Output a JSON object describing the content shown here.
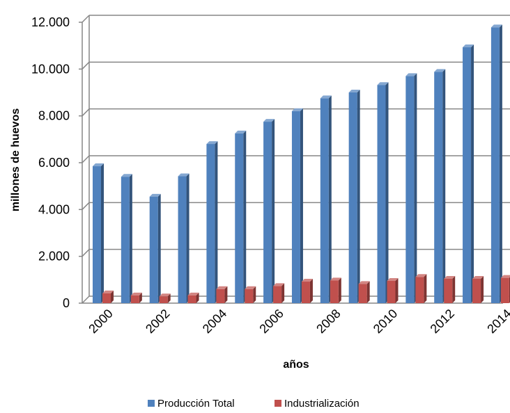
{
  "chart_data": {
    "type": "bar",
    "style": "3d-clustered-column",
    "x": [
      2000,
      2001,
      2002,
      2003,
      2004,
      2005,
      2006,
      2007,
      2008,
      2009,
      2010,
      2011,
      2012,
      2013,
      2014
    ],
    "x_tick_labels": [
      "2000",
      "2002",
      "2004",
      "2006",
      "2008",
      "2010",
      "2012",
      "2014"
    ],
    "series": [
      {
        "name": "Producción Total",
        "color": "#4F81BD",
        "values": [
          5850,
          5400,
          4550,
          5420,
          6800,
          7250,
          7750,
          8200,
          8750,
          9000,
          9320,
          9700,
          9880,
          10930,
          11780
        ]
      },
      {
        "name": "Industrialización",
        "color": "#C0504D",
        "values": [
          420,
          330,
          290,
          330,
          600,
          600,
          730,
          920,
          970,
          820,
          950,
          1120,
          1040,
          1040,
          1080
        ]
      }
    ],
    "y_ticks": [
      "0",
      "2.000",
      "4.000",
      "6.000",
      "8.000",
      "10.000",
      "12.000"
    ],
    "ylim": [
      0,
      12000
    ],
    "xlabel": "años",
    "ylabel": "millones de huevos",
    "grid": true,
    "legend_position": "bottom"
  }
}
